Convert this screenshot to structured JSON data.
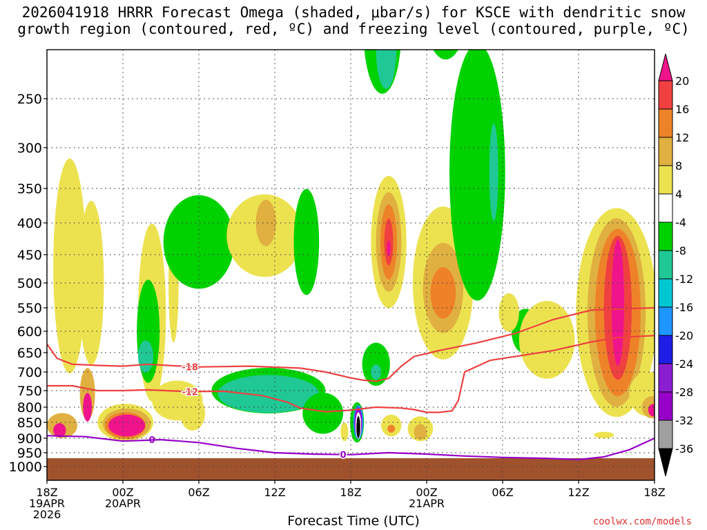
{
  "chart_data": {
    "type": "heatmap",
    "title_line1": "2026041918 HRRR Forecast Omega (shaded, μbar/s) for KSCE with dendritic snow",
    "title_line2": "growth region (contoured, red, ºC) and freezing level (contoured, purple, ºC)",
    "xlabel": "Forecast Time (UTC)",
    "x_ticks": [
      {
        "hour": 0,
        "l1": "18Z",
        "l2": "19APR",
        "l3": "2026"
      },
      {
        "hour": 6,
        "l1": "00Z",
        "l2": "20APR",
        "l3": ""
      },
      {
        "hour": 12,
        "l1": "06Z",
        "l2": "",
        "l3": ""
      },
      {
        "hour": 18,
        "l1": "12Z",
        "l2": "",
        "l3": ""
      },
      {
        "hour": 24,
        "l1": "18Z",
        "l2": "",
        "l3": ""
      },
      {
        "hour": 30,
        "l1": "00Z",
        "l2": "21APR",
        "l3": ""
      },
      {
        "hour": 36,
        "l1": "06Z",
        "l2": "",
        "l3": ""
      },
      {
        "hour": 42,
        "l1": "12Z",
        "l2": "",
        "l3": ""
      },
      {
        "hour": 48,
        "l1": "18Z",
        "l2": "",
        "l3": ""
      }
    ],
    "y_ticks": [
      250,
      300,
      350,
      400,
      450,
      500,
      550,
      600,
      650,
      700,
      750,
      800,
      850,
      900,
      950,
      1000
    ],
    "ylim": [
      200,
      1000
    ],
    "xlim": [
      0,
      48
    ],
    "colorbar_levels": [
      20,
      16,
      12,
      8,
      4,
      -4,
      -8,
      -12,
      -16,
      -20,
      -24,
      -28,
      -32,
      -36
    ],
    "colorbar_colors": [
      "#f0148c",
      "#f04040",
      "#ee8228",
      "#e0b040",
      "#ece250",
      "#ffffff",
      "#00d200",
      "#20c896",
      "#00c8d2",
      "#1e96ff",
      "#1e1ee6",
      "#8c1ed2",
      "#9600c8",
      "#a0a0a0",
      "#000000"
    ],
    "omega_regions": [
      {
        "h": 1.8,
        "p": 470,
        "rh": 1.3,
        "rp": 360,
        "color": "#ece250"
      },
      {
        "h": 3.5,
        "p": 500,
        "rh": 1.0,
        "rp": 300,
        "color": "#ece250"
      },
      {
        "h": 3.2,
        "p": 760,
        "rh": 0.6,
        "rp": 150,
        "color": "#e0b040"
      },
      {
        "h": 3.2,
        "p": 800,
        "rh": 0.35,
        "rp": 90,
        "color": "#f0148c"
      },
      {
        "h": 1.2,
        "p": 860,
        "rh": 1.2,
        "rp": 80,
        "color": "#e0b040"
      },
      {
        "h": 1.0,
        "p": 875,
        "rh": 0.5,
        "rp": 45,
        "color": "#f0148c"
      },
      {
        "h": 6.2,
        "p": 850,
        "rh": 2.2,
        "rp": 120,
        "color": "#ece250"
      },
      {
        "h": 6.3,
        "p": 855,
        "rh": 1.9,
        "rp": 100,
        "color": "#e0b040"
      },
      {
        "h": 6.2,
        "p": 860,
        "rh": 1.6,
        "rp": 85,
        "color": "#ee8228"
      },
      {
        "h": 6.3,
        "p": 860,
        "rh": 1.45,
        "rp": 70,
        "color": "#f0148c"
      },
      {
        "h": 8.3,
        "p": 560,
        "rh": 1.1,
        "rp": 360,
        "color": "#ece250"
      },
      {
        "h": 8.0,
        "p": 600,
        "rh": 0.9,
        "rp": 230,
        "color": "#00d200"
      },
      {
        "h": 7.8,
        "p": 660,
        "rh": 0.6,
        "rp": 80,
        "color": "#20c896"
      },
      {
        "h": 10.0,
        "p": 500,
        "rh": 0.4,
        "rp": 220,
        "color": "#ece250"
      },
      {
        "h": 10.3,
        "p": 780,
        "rh": 2.0,
        "rp": 120,
        "color": "#ece250"
      },
      {
        "h": 12.0,
        "p": 430,
        "rh": 2.8,
        "rp": 150,
        "color": "#00d200"
      },
      {
        "h": 17.2,
        "p": 420,
        "rh": 3.0,
        "rp": 130,
        "color": "#ece250"
      },
      {
        "h": 17.3,
        "p": 400,
        "rh": 0.8,
        "rp": 70,
        "color": "#e0b040"
      },
      {
        "h": 20.5,
        "p": 430,
        "rh": 1.0,
        "rp": 170,
        "color": "#00d200"
      },
      {
        "h": 17.5,
        "p": 750,
        "rh": 4.5,
        "rp": 130,
        "color": "#00d200"
      },
      {
        "h": 17.5,
        "p": 760,
        "rh": 4.0,
        "rp": 110,
        "color": "#20c896"
      },
      {
        "h": 21.8,
        "p": 820,
        "rh": 1.6,
        "rp": 130,
        "color": "#00d200"
      },
      {
        "h": 11.5,
        "p": 820,
        "rh": 1.0,
        "rp": 110,
        "color": "#ece250"
      },
      {
        "h": 26.5,
        "p": 180,
        "rh": 1.5,
        "rp": 130,
        "color": "#00d200"
      },
      {
        "h": 26.8,
        "p": 200,
        "rh": 0.8,
        "rp": 80,
        "color": "#20c896"
      },
      {
        "h": 27.0,
        "p": 430,
        "rh": 1.4,
        "rp": 210,
        "color": "#ece250"
      },
      {
        "h": 27.0,
        "p": 430,
        "rh": 1.0,
        "rp": 160,
        "color": "#e0b040"
      },
      {
        "h": 27.0,
        "p": 430,
        "rh": 0.65,
        "rp": 120,
        "color": "#ee8228"
      },
      {
        "h": 27.0,
        "p": 430,
        "rh": 0.35,
        "rp": 75,
        "color": "#f04040"
      },
      {
        "h": 27.0,
        "p": 440,
        "rh": 0.15,
        "rp": 25,
        "color": "#f0148c"
      },
      {
        "h": 26.0,
        "p": 680,
        "rh": 1.1,
        "rp": 110,
        "color": "#00d200"
      },
      {
        "h": 26.0,
        "p": 700,
        "rh": 0.4,
        "rp": 40,
        "color": "#20c896"
      },
      {
        "h": 27.2,
        "p": 860,
        "rh": 0.8,
        "rp": 70,
        "color": "#ece250"
      },
      {
        "h": 27.2,
        "p": 870,
        "rh": 0.3,
        "rp": 25,
        "color": "#ee8228"
      },
      {
        "h": 31.3,
        "p": 500,
        "rh": 2.4,
        "rp": 280,
        "color": "#ece250"
      },
      {
        "h": 31.3,
        "p": 510,
        "rh": 1.6,
        "rp": 170,
        "color": "#e0b040"
      },
      {
        "h": 31.3,
        "p": 520,
        "rh": 1.0,
        "rp": 100,
        "color": "#ee8228"
      },
      {
        "h": 29.5,
        "p": 870,
        "rh": 1.0,
        "rp": 80,
        "color": "#ece250"
      },
      {
        "h": 29.5,
        "p": 880,
        "rh": 0.5,
        "rp": 50,
        "color": "#e0b040"
      },
      {
        "h": 34.0,
        "p": 330,
        "rh": 2.2,
        "rp": 320,
        "color": "#00d200"
      },
      {
        "h": 35.3,
        "p": 330,
        "rh": 0.35,
        "rp": 120,
        "color": "#20c896"
      },
      {
        "h": 31.5,
        "p": 150,
        "rh": 1.8,
        "rp": 120,
        "color": "#00d200"
      },
      {
        "h": 37.8,
        "p": 600,
        "rh": 1.1,
        "rp": 100,
        "color": "#00d200"
      },
      {
        "h": 36.5,
        "p": 560,
        "rh": 0.8,
        "rp": 80,
        "color": "#ece250"
      },
      {
        "h": 39.5,
        "p": 620,
        "rh": 2.2,
        "rp": 180,
        "color": "#ece250"
      },
      {
        "h": 45.0,
        "p": 560,
        "rh": 3.2,
        "rp": 420,
        "color": "#ece250"
      },
      {
        "h": 45.0,
        "p": 560,
        "rh": 2.3,
        "rp": 380,
        "color": "#e0b040"
      },
      {
        "h": 45.1,
        "p": 560,
        "rh": 1.8,
        "rp": 340,
        "color": "#ee8228"
      },
      {
        "h": 45.1,
        "p": 550,
        "rh": 1.1,
        "rp": 290,
        "color": "#f04040"
      },
      {
        "h": 45.1,
        "p": 540,
        "rh": 0.5,
        "rp": 250,
        "color": "#f0148c"
      },
      {
        "h": 47.5,
        "p": 760,
        "rh": 1.5,
        "rp": 130,
        "color": "#ece250"
      },
      {
        "h": 47.8,
        "p": 800,
        "rh": 0.8,
        "rp": 70,
        "color": "#e0b040"
      },
      {
        "h": 47.9,
        "p": 810,
        "rh": 0.4,
        "rp": 40,
        "color": "#f0148c"
      },
      {
        "h": 44.0,
        "p": 890,
        "rh": 0.8,
        "rp": 20,
        "color": "#ece250"
      },
      {
        "h": 24.5,
        "p": 850,
        "rh": 0.55,
        "rp": 130,
        "color": "#00d200"
      },
      {
        "h": 24.6,
        "p": 850,
        "rh": 0.4,
        "rp": 110,
        "color": "#1e96ff"
      },
      {
        "h": 24.6,
        "p": 850,
        "rh": 0.3,
        "rp": 95,
        "color": "#9600c8"
      },
      {
        "h": 24.6,
        "p": 860,
        "rh": 0.22,
        "rp": 85,
        "color": "#ffffff"
      },
      {
        "h": 24.6,
        "p": 865,
        "rh": 0.15,
        "rp": 70,
        "color": "#000000"
      },
      {
        "h": 23.5,
        "p": 880,
        "rh": 0.3,
        "rp": 60,
        "color": "#ece250"
      }
    ],
    "contours": [
      {
        "name": "minus-18",
        "label": "-18",
        "color": "#ee4040",
        "label_at": {
          "h": 11.3,
          "p": 687
        },
        "points": [
          [
            0,
            630
          ],
          [
            0.8,
            665
          ],
          [
            2,
            680
          ],
          [
            4,
            683
          ],
          [
            6,
            685
          ],
          [
            8,
            680
          ],
          [
            10,
            684
          ],
          [
            12,
            687
          ],
          [
            16,
            685
          ],
          [
            20,
            690
          ],
          [
            22,
            700
          ],
          [
            24,
            716
          ],
          [
            25,
            722
          ],
          [
            26,
            725
          ],
          [
            27,
            717
          ],
          [
            28,
            685
          ],
          [
            29,
            660
          ],
          [
            31,
            645
          ],
          [
            34,
            627
          ],
          [
            37,
            605
          ],
          [
            40,
            575
          ],
          [
            43,
            555
          ],
          [
            48,
            550
          ]
        ]
      },
      {
        "name": "minus-12",
        "label": "-12",
        "color": "#ee4040",
        "label_at": {
          "h": 11.3,
          "p": 753
        },
        "points": [
          [
            0,
            737
          ],
          [
            2,
            737
          ],
          [
            4,
            750
          ],
          [
            6,
            750
          ],
          [
            8,
            748
          ],
          [
            11,
            753
          ],
          [
            14,
            752
          ],
          [
            17,
            765
          ],
          [
            19,
            785
          ],
          [
            20,
            803
          ],
          [
            22,
            815
          ],
          [
            24,
            810
          ],
          [
            26,
            800
          ],
          [
            28,
            803
          ],
          [
            29,
            808
          ],
          [
            30,
            817
          ],
          [
            31,
            817
          ],
          [
            32,
            812
          ],
          [
            32.5,
            780
          ],
          [
            33,
            700
          ],
          [
            35,
            670
          ],
          [
            37,
            660
          ],
          [
            40,
            645
          ],
          [
            43,
            625
          ],
          [
            45,
            615
          ],
          [
            48,
            610
          ]
        ]
      },
      {
        "name": "zero",
        "label": "0",
        "color": "#9600c8",
        "label_at": {
          "h": 23.4,
          "p": 956
        },
        "points": [
          [
            0,
            892
          ],
          [
            3,
            895
          ],
          [
            6,
            910
          ],
          [
            9,
            905
          ],
          [
            12,
            915
          ],
          [
            15,
            935
          ],
          [
            18,
            950
          ],
          [
            21,
            955
          ],
          [
            24,
            957
          ],
          [
            27,
            950
          ],
          [
            30,
            955
          ],
          [
            33,
            962
          ],
          [
            36,
            967
          ],
          [
            39,
            970
          ],
          [
            40.5,
            972
          ],
          [
            42,
            975
          ],
          [
            44,
            965
          ],
          [
            46,
            940
          ],
          [
            48,
            900
          ]
        ]
      }
    ],
    "contour_zero_extra_label": {
      "h": 8.3,
      "p": 905,
      "label": "0"
    },
    "terrain_top_p": 970,
    "terrain_color": "#a0522d"
  },
  "credit": "coolwx.com/models"
}
